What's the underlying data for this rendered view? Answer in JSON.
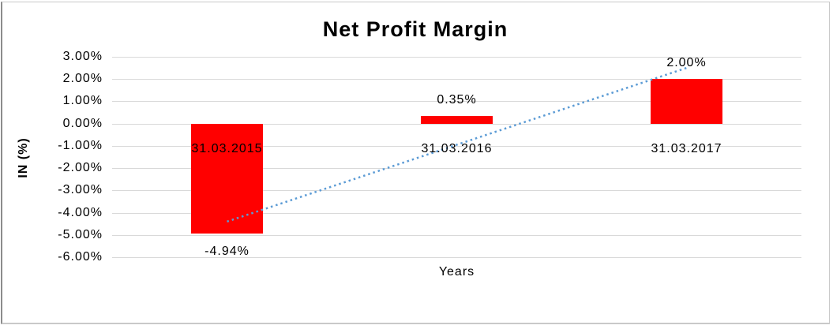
{
  "chart_data": {
    "type": "bar",
    "title": "Net Profit Margin",
    "xlabel": "Years",
    "ylabel": "IN (%)",
    "categories": [
      "31.03.2015",
      "31.03.2016",
      "31.03.2017"
    ],
    "values": [
      -4.94,
      0.35,
      2.0
    ],
    "data_labels": [
      "-4.94%",
      "0.35%",
      "2.00%"
    ],
    "ylim": [
      -6,
      3
    ],
    "ytick_step": 1,
    "ytick_labels": [
      "3.00%",
      "2.00%",
      "1.00%",
      "0.00%",
      "-1.00%",
      "-2.00%",
      "-3.00%",
      "-4.00%",
      "-5.00%",
      "-6.00%"
    ],
    "grid": true,
    "legend": "none",
    "bar_color": "#FF0000",
    "gridline_color": "#D9D9D9",
    "text_color": "#000000",
    "trendline": {
      "type": "linear",
      "style": "dotted",
      "color": "#5B9BD5",
      "start_value": -4.4,
      "end_value": 2.5
    }
  }
}
